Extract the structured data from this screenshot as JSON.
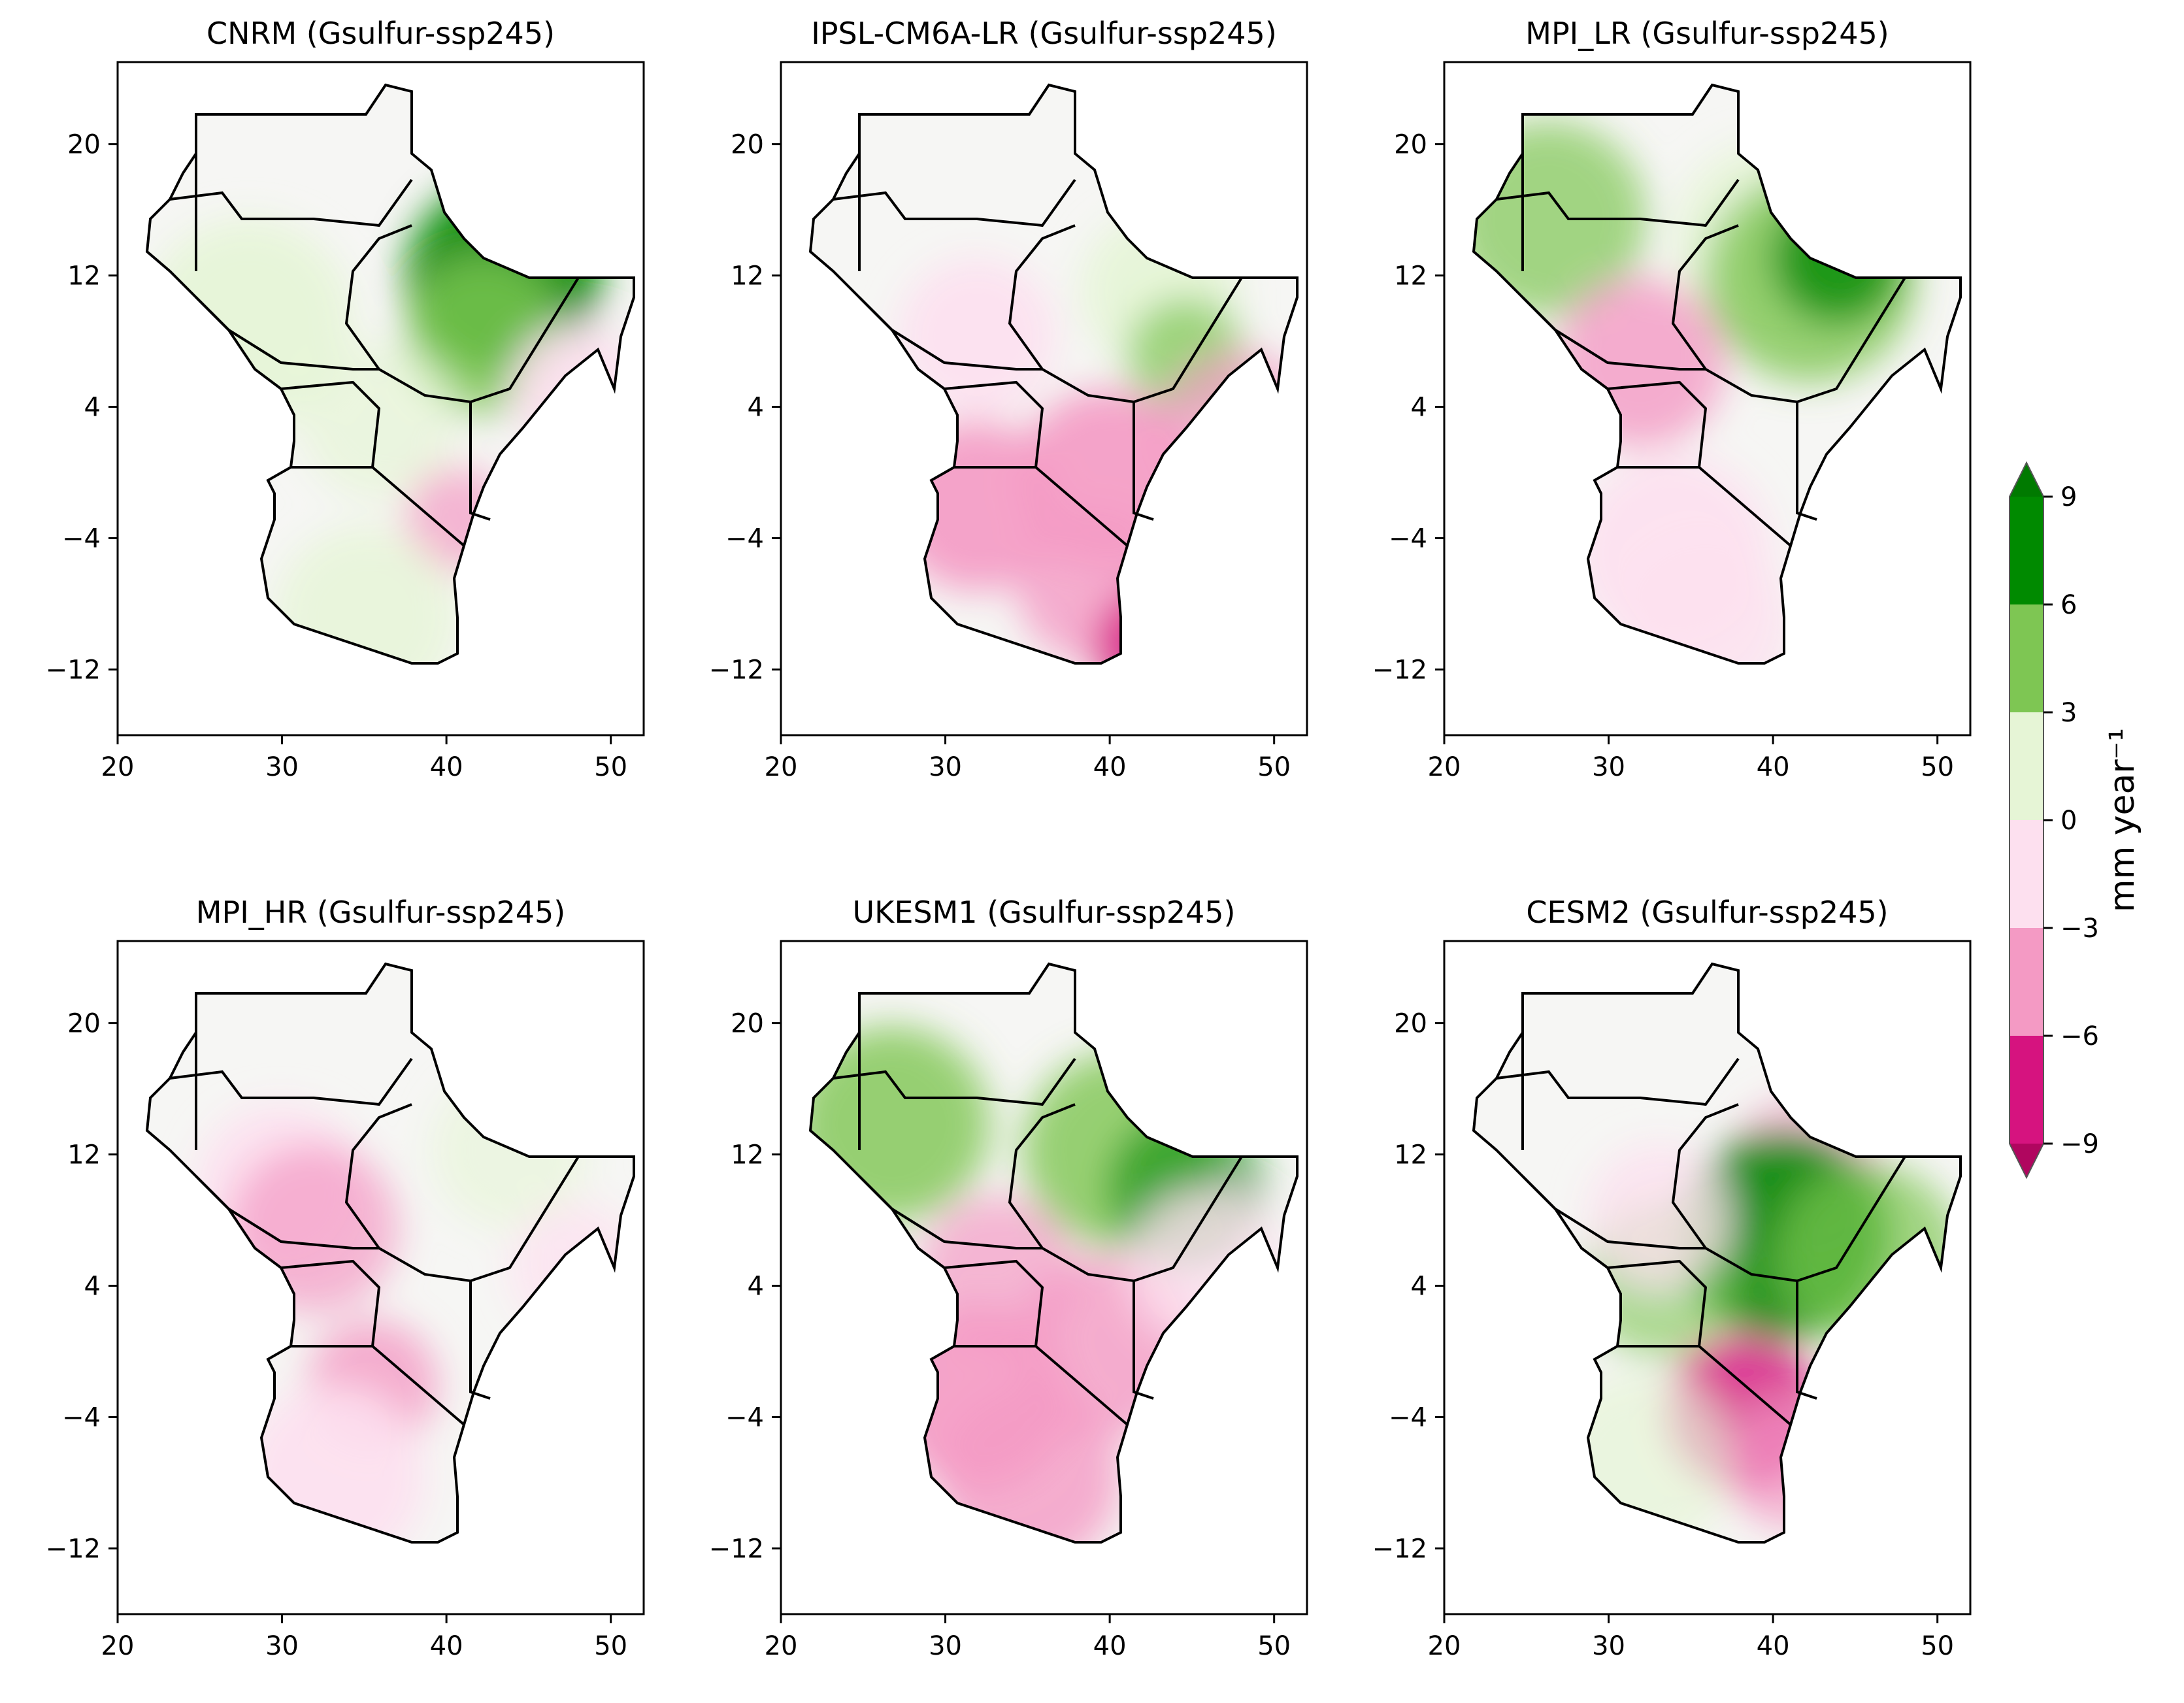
{
  "figure": {
    "panels": [
      {
        "title": "CNRM (Gsulfur-ssp245)"
      },
      {
        "title": "IPSL-CM6A-LR (Gsulfur-ssp245)"
      },
      {
        "title": "MPI_LR (Gsulfur-ssp245)"
      },
      {
        "title": "MPI_HR (Gsulfur-ssp245)"
      },
      {
        "title": "UKESM1 (Gsulfur-ssp245)"
      },
      {
        "title": "CESM2 (Gsulfur-ssp245)"
      }
    ],
    "x_ticks": [
      "20",
      "30",
      "40",
      "50"
    ],
    "y_ticks": [
      "20",
      "12",
      "4",
      "−4",
      "−12"
    ],
    "x_range": [
      20,
      52
    ],
    "y_range": [
      -16,
      25
    ],
    "colorbar": {
      "label": "mm year⁻¹",
      "ticks": [
        "9",
        "6",
        "3",
        "0",
        "−3",
        "−6",
        "−9"
      ],
      "colors": {
        "above_9": "#007a00",
        "6_to_9": "#008a00",
        "3_to_6": "#7ec653",
        "0_to_3": "#e6f5d6",
        "m3_to_0": "#fde0ef",
        "m6_to_m3": "#f49ac4",
        "m9_to_m6": "#d6137f",
        "below_m9": "#b0065f"
      }
    }
  }
}
